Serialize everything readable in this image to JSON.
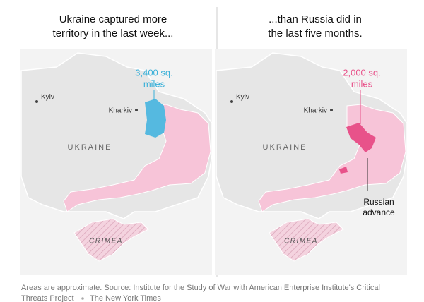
{
  "panels": [
    {
      "title_lines": [
        "Ukraine captured more",
        "territory in the last week..."
      ],
      "cities": [
        "Kyiv",
        "Kharkiv"
      ],
      "country": "UKRAINE",
      "region": "CRIMEA",
      "area_label": [
        "3,400 sq.",
        "miles"
      ]
    },
    {
      "title_lines": [
        "...than Russia did in",
        "the last five months."
      ],
      "cities": [
        "Kyiv",
        "Kharkiv"
      ],
      "country": "UKRAINE",
      "region": "CRIMEA",
      "area_label": [
        "2,000 sq.",
        "miles"
      ],
      "annotation": [
        "Russian",
        "advance"
      ]
    }
  ],
  "footer": {
    "note_lines": [
      "Areas are approximate. Source: Institute for the Study of War with American Enterprise Institute's Critical",
      "Threats Project"
    ],
    "credit": "The New York Times"
  }
}
